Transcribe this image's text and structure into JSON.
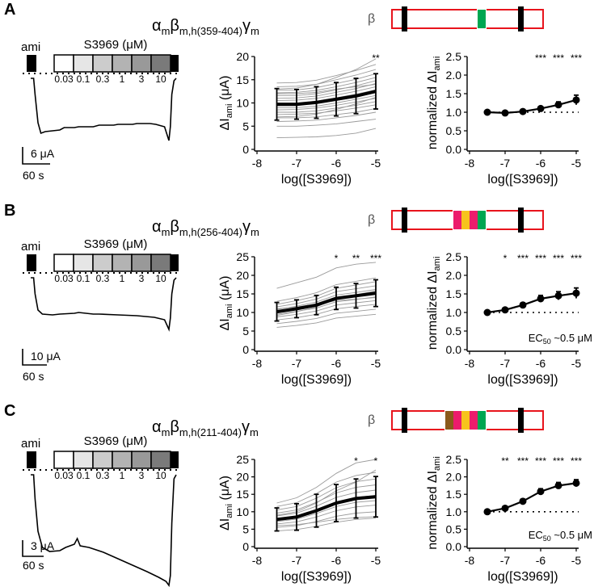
{
  "figure": {
    "amiloride_label": "ami",
    "compound_label": "S3969 (μM)",
    "concentration_labels": [
      "0.03",
      "0.1",
      "0.3",
      "1",
      "3",
      "10"
    ],
    "step_fills": [
      "#ffffff",
      "#e6e6e6",
      "#cccccc",
      "#b3b3b3",
      "#999999",
      "#7a7a7a"
    ],
    "time_scale_label": "60 s",
    "subunit_label": "β",
    "ec50_label": "EC50 ~0.5 μM",
    "colors": {
      "outline": "#e8141c",
      "green": "#00a651",
      "pink": "#ec1c6c",
      "yellow": "#f7c31c",
      "brown": "#8a5a1c",
      "thin_trace": "#9a9a9a",
      "mean": "#000000"
    }
  },
  "panels": [
    {
      "letter": "A",
      "construct": {
        "alpha": "α",
        "alpha_sub": "m",
        "beta": "β",
        "beta_sub": "m,h(359-404)",
        "gamma": "γ",
        "gamma_sub": "m"
      },
      "current_scale_label": "6 μA",
      "linker": [
        "green"
      ],
      "chart_data": [
        {
          "type": "line",
          "title": "",
          "xlabel": "log([S3969])",
          "ylabel": "ΔI_ami (μA)",
          "xlim": [
            -8,
            -5
          ],
          "ylim": [
            0,
            20
          ],
          "xticks": [
            -8,
            -7,
            -6,
            -5
          ],
          "yticks": [
            0,
            5,
            10,
            15,
            20
          ],
          "x": [
            -7.5,
            -7,
            -6.5,
            -6,
            -5.5,
            -5
          ],
          "series": [
            {
              "role": "mean",
              "values": [
                9.7,
                9.7,
                10.1,
                10.8,
                11.5,
                12.5
              ],
              "sd": [
                3.4,
                3.2,
                3.4,
                3.6,
                3.8,
                3.8
              ]
            }
          ],
          "individual": [
            [
              2.5,
              2.6,
              2.7,
              3.0,
              3.5,
              4.5
            ],
            [
              5.0,
              5.0,
              5.2,
              5.5,
              6.0,
              6.5
            ],
            [
              6.0,
              6.1,
              6.3,
              6.8,
              7.3,
              8.0
            ],
            [
              6.8,
              6.8,
              7.0,
              7.5,
              8.0,
              8.8
            ],
            [
              7.5,
              7.6,
              7.8,
              8.3,
              8.9,
              9.6
            ],
            [
              8.0,
              8.0,
              8.3,
              8.9,
              9.5,
              10.3
            ],
            [
              8.5,
              8.6,
              8.9,
              9.5,
              10.2,
              11.0
            ],
            [
              9.0,
              9.0,
              9.3,
              10.0,
              10.8,
              11.6
            ],
            [
              9.5,
              9.5,
              9.9,
              10.5,
              11.3,
              12.2
            ],
            [
              10.0,
              10.0,
              10.4,
              11.1,
              11.9,
              12.8
            ],
            [
              10.5,
              10.6,
              11.0,
              11.7,
              12.5,
              13.5
            ],
            [
              11.0,
              11.1,
              11.5,
              12.3,
              13.1,
              14.2
            ],
            [
              11.6,
              11.6,
              12.0,
              12.8,
              13.7,
              14.8
            ],
            [
              12.2,
              12.3,
              12.7,
              13.5,
              14.4,
              15.5
            ],
            [
              12.8,
              12.8,
              13.3,
              14.2,
              15.1,
              16.3
            ],
            [
              13.5,
              13.6,
              14.0,
              15.0,
              16.0,
              17.2
            ],
            [
              14.3,
              14.4,
              14.9,
              15.9,
              17.0,
              18.3
            ],
            [
              13.0,
              13.2,
              14.0,
              15.5,
              17.2,
              19.5
            ],
            [
              12.0,
              12.0,
              12.3,
              13.0,
              13.5,
              14.0
            ],
            [
              7.0,
              7.1,
              7.6,
              8.6,
              9.8,
              11.2
            ]
          ],
          "significance": [
            {
              "x": -5,
              "label": "**"
            }
          ]
        },
        {
          "type": "line",
          "title": "",
          "xlabel": "log([S3969])",
          "ylabel": "normalized ΔI_ami",
          "xlim": [
            -8,
            -5
          ],
          "ylim": [
            0,
            2.5
          ],
          "xticks": [
            -8,
            -7,
            -6,
            -5
          ],
          "yticks": [
            0,
            0.5,
            1.0,
            1.5,
            2.0,
            2.5
          ],
          "reference_line": 1.0,
          "x": [
            -7.5,
            -7,
            -6.5,
            -6,
            -5.5,
            -5
          ],
          "series": [
            {
              "role": "mean",
              "values": [
                1.0,
                0.98,
                1.02,
                1.1,
                1.2,
                1.33
              ],
              "sd": [
                0.0,
                0.03,
                0.03,
                0.05,
                0.08,
                0.13
              ]
            }
          ],
          "significance": [
            {
              "x": -6,
              "label": "***"
            },
            {
              "x": -5.5,
              "label": "***"
            },
            {
              "x": -5,
              "label": "***"
            }
          ]
        }
      ]
    },
    {
      "letter": "B",
      "construct": {
        "alpha": "α",
        "alpha_sub": "m",
        "beta": "β",
        "beta_sub": "m,h(256-404)",
        "gamma": "γ",
        "gamma_sub": "m"
      },
      "current_scale_label": "10 μA",
      "linker": [
        "pink",
        "yellow",
        "pink",
        "green"
      ],
      "chart_data": [
        {
          "type": "line",
          "title": "",
          "xlabel": "log([S3969])",
          "ylabel": "ΔI_ami (μA)",
          "xlim": [
            -8,
            -5
          ],
          "ylim": [
            0,
            25
          ],
          "xticks": [
            -8,
            -7,
            -6,
            -5
          ],
          "yticks": [
            0,
            5,
            10,
            15,
            20,
            25
          ],
          "x": [
            -7.5,
            -7,
            -6.5,
            -6,
            -5.5,
            -5
          ],
          "series": [
            {
              "role": "mean",
              "values": [
                10.2,
                11.0,
                12.0,
                13.8,
                14.5,
                15.2
              ],
              "sd": [
                2.5,
                2.4,
                2.6,
                3.0,
                3.3,
                3.6
              ]
            }
          ],
          "individual": [
            [
              6.0,
              6.5,
              7.2,
              8.5,
              9.0,
              9.5
            ],
            [
              7.0,
              7.6,
              8.4,
              9.8,
              10.3,
              10.9
            ],
            [
              8.0,
              8.6,
              9.5,
              11.0,
              11.6,
              12.2
            ],
            [
              8.8,
              9.5,
              10.4,
              12.0,
              12.6,
              13.2
            ],
            [
              9.5,
              10.3,
              11.2,
              12.9,
              13.5,
              14.2
            ],
            [
              10.2,
              11.0,
              12.0,
              13.8,
              14.5,
              15.2
            ],
            [
              10.8,
              11.7,
              12.8,
              14.7,
              15.4,
              16.2
            ],
            [
              11.5,
              12.4,
              13.6,
              15.6,
              16.4,
              17.2
            ],
            [
              12.2,
              13.2,
              14.4,
              16.5,
              17.4,
              18.3
            ],
            [
              13.0,
              14.0,
              15.3,
              17.5,
              18.4,
              19.3
            ],
            [
              11.0,
              11.5,
              12.2,
              13.2,
              13.6,
              14.0
            ],
            [
              9.2,
              10.2,
              11.5,
              13.8,
              14.8,
              15.8
            ],
            [
              16.5,
              18.0,
              19.5,
              22.0,
              23.0,
              23.5
            ]
          ],
          "significance": [
            {
              "x": -6,
              "label": "*"
            },
            {
              "x": -5.5,
              "label": "**"
            },
            {
              "x": -5,
              "label": "***"
            }
          ]
        },
        {
          "type": "line",
          "title": "",
          "xlabel": "log([S3969])",
          "ylabel": "normalized ΔI_ami",
          "xlim": [
            -8,
            -5
          ],
          "ylim": [
            0,
            2.5
          ],
          "xticks": [
            -8,
            -7,
            -6,
            -5
          ],
          "yticks": [
            0,
            0.5,
            1.0,
            1.5,
            2.0,
            2.5
          ],
          "reference_line": 1.0,
          "x": [
            -7.5,
            -7,
            -6.5,
            -6,
            -5.5,
            -5
          ],
          "series": [
            {
              "role": "mean",
              "values": [
                1.0,
                1.07,
                1.2,
                1.37,
                1.45,
                1.52
              ],
              "sd": [
                0.0,
                0.04,
                0.06,
                0.09,
                0.11,
                0.14
              ]
            }
          ],
          "significance": [
            {
              "x": -7,
              "label": "*"
            },
            {
              "x": -6.5,
              "label": "***"
            },
            {
              "x": -6,
              "label": "***"
            },
            {
              "x": -5.5,
              "label": "***"
            },
            {
              "x": -5,
              "label": "***"
            }
          ]
        }
      ]
    },
    {
      "letter": "C",
      "construct": {
        "alpha": "α",
        "alpha_sub": "m",
        "beta": "β",
        "beta_sub": "m,h(211-404)",
        "gamma": "γ",
        "gamma_sub": "m"
      },
      "current_scale_label": "3 μA",
      "linker": [
        "brown",
        "pink",
        "yellow",
        "pink",
        "green"
      ],
      "chart_data": [
        {
          "type": "line",
          "title": "",
          "xlabel": "log([S3969])",
          "ylabel": "ΔI_ami (μA)",
          "xlim": [
            -8,
            -5
          ],
          "ylim": [
            0,
            25
          ],
          "xticks": [
            -8,
            -7,
            -6,
            -5
          ],
          "yticks": [
            0,
            5,
            10,
            15,
            20,
            25
          ],
          "x": [
            -7.5,
            -7,
            -6.5,
            -6,
            -5.5,
            -5
          ],
          "series": [
            {
              "role": "mean",
              "values": [
                7.8,
                8.5,
                10.3,
                12.5,
                13.8,
                14.3
              ],
              "sd": [
                3.3,
                3.8,
                4.7,
                5.3,
                5.6,
                5.8
              ]
            }
          ],
          "individual": [
            [
              4.5,
              4.9,
              5.8,
              7.0,
              7.8,
              8.2
            ],
            [
              5.5,
              6.0,
              7.2,
              8.7,
              9.6,
              10.0
            ],
            [
              6.5,
              7.1,
              8.5,
              10.3,
              11.4,
              11.9
            ],
            [
              7.2,
              7.9,
              9.5,
              11.5,
              12.7,
              13.2
            ],
            [
              8.0,
              8.7,
              10.5,
              12.8,
              14.1,
              14.7
            ],
            [
              8.8,
              9.6,
              11.6,
              14.1,
              15.5,
              16.2
            ],
            [
              9.6,
              10.5,
              12.7,
              15.4,
              17.0,
              17.7
            ],
            [
              10.5,
              11.5,
              13.9,
              16.9,
              18.6,
              19.4
            ],
            [
              11.5,
              12.6,
              15.2,
              18.5,
              20.4,
              21.3
            ],
            [
              12.5,
              14.0,
              17.0,
              21.0,
              24.0,
              25.0
            ],
            [
              6.0,
              6.3,
              7.0,
              7.8,
              8.3,
              8.6
            ],
            [
              9.0,
              10.0,
              12.5,
              16.0,
              18.5,
              22.0
            ]
          ],
          "significance": [
            {
              "x": -5.5,
              "label": "*"
            },
            {
              "x": -5,
              "label": "*"
            }
          ]
        },
        {
          "type": "line",
          "title": "",
          "xlabel": "log([S3969])",
          "ylabel": "normalized ΔI_ami",
          "xlim": [
            -8,
            -5
          ],
          "ylim": [
            0,
            2.5
          ],
          "xticks": [
            -8,
            -7,
            -6,
            -5
          ],
          "yticks": [
            0,
            0.5,
            1.0,
            1.5,
            2.0,
            2.5
          ],
          "reference_line": 1.0,
          "x": [
            -7.5,
            -7,
            -6.5,
            -6,
            -5.5,
            -5
          ],
          "series": [
            {
              "role": "mean",
              "values": [
                1.0,
                1.1,
                1.3,
                1.58,
                1.75,
                1.82
              ],
              "sd": [
                0.0,
                0.04,
                0.06,
                0.08,
                0.09,
                0.1
              ]
            }
          ],
          "significance": [
            {
              "x": -7,
              "label": "**"
            },
            {
              "x": -6.5,
              "label": "***"
            },
            {
              "x": -6,
              "label": "***"
            },
            {
              "x": -5.5,
              "label": "***"
            },
            {
              "x": -5,
              "label": "***"
            }
          ]
        }
      ]
    }
  ]
}
